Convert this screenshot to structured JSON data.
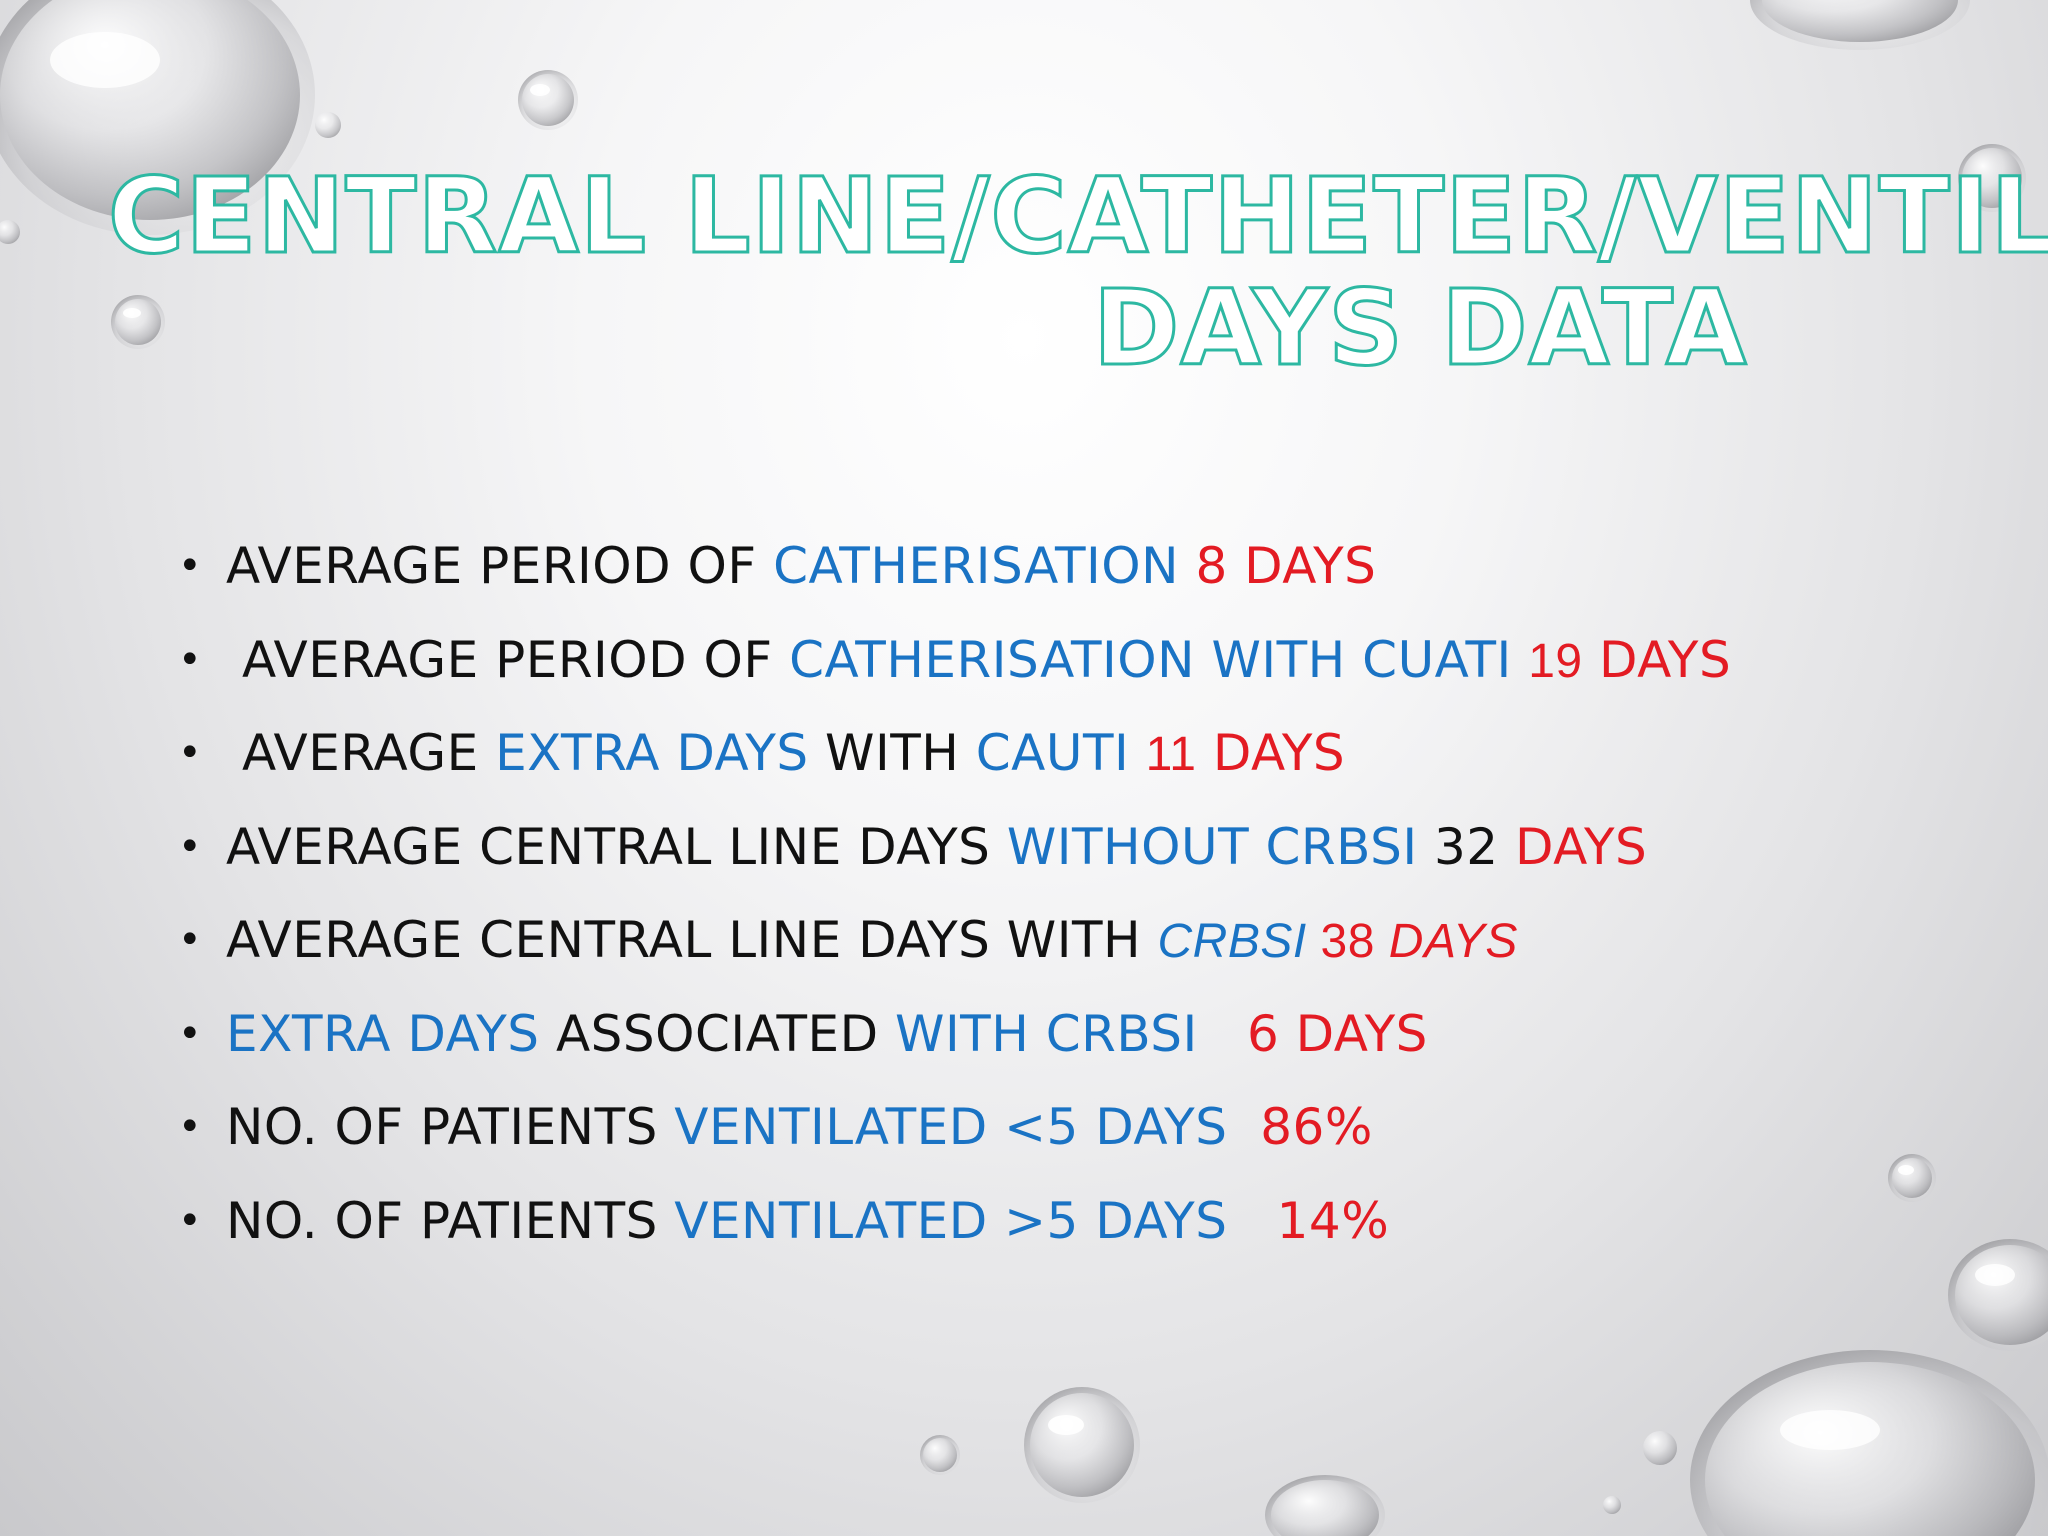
{
  "title": {
    "line1": "CENTRAL LINE/CATHETER/VENTILATOR",
    "line2": "DAYS DATA"
  },
  "bullets": [
    {
      "seg": [
        {
          "t": "AVERAGE PERIOD OF "
        },
        {
          "t": "CATHERISATION "
        },
        {
          "t": "8 DAYS"
        }
      ]
    },
    {
      "seg": [
        {
          "t": "AVERAGE PERIOD OF "
        },
        {
          "t": "CATHERISATION WITH CUATI "
        },
        {
          "t": "19"
        },
        {
          "t": " DAYS"
        }
      ]
    },
    {
      "seg": [
        {
          "t": "AVERAGE "
        },
        {
          "t": "EXTRA DAYS"
        },
        {
          "t": " WITH "
        },
        {
          "t": "CAUTI "
        },
        {
          "t": "11"
        },
        {
          "t": " DAYS"
        }
      ]
    },
    {
      "seg": [
        {
          "t": "AVERAGE CENTRAL LINE DAYS "
        },
        {
          "t": "WITHOUT CRBSI "
        },
        {
          "t": "32 "
        },
        {
          "t": "DAYS"
        }
      ]
    },
    {
      "seg": [
        {
          "t": "AVERAGE CENTRAL LINE DAYS WITH "
        },
        {
          "t": "CRBSI "
        },
        {
          "t": " 38"
        },
        {
          "t": " DAYS"
        }
      ]
    },
    {
      "seg": [
        {
          "t": "EXTRA DAYS "
        },
        {
          "t": "ASSOCIATED "
        },
        {
          "t": "WITH CRBSI"
        },
        {
          "t": "   6 DAYS"
        }
      ]
    },
    {
      "seg": [
        {
          "t": "NO. OF PATIENTS "
        },
        {
          "t": "VENTILATED <5 DAYS"
        },
        {
          "t": "  86%"
        }
      ]
    },
    {
      "seg": [
        {
          "t": "NO. OF PATIENTS "
        },
        {
          "t": "VENTILATED >5 DAYS"
        },
        {
          "t": "   14%"
        }
      ]
    }
  ],
  "bullet_glyph": "•",
  "colors": {
    "title_outline": "#2db8a2",
    "text": "#111111",
    "blue": "#1a73c4",
    "red": "#e31b23"
  }
}
